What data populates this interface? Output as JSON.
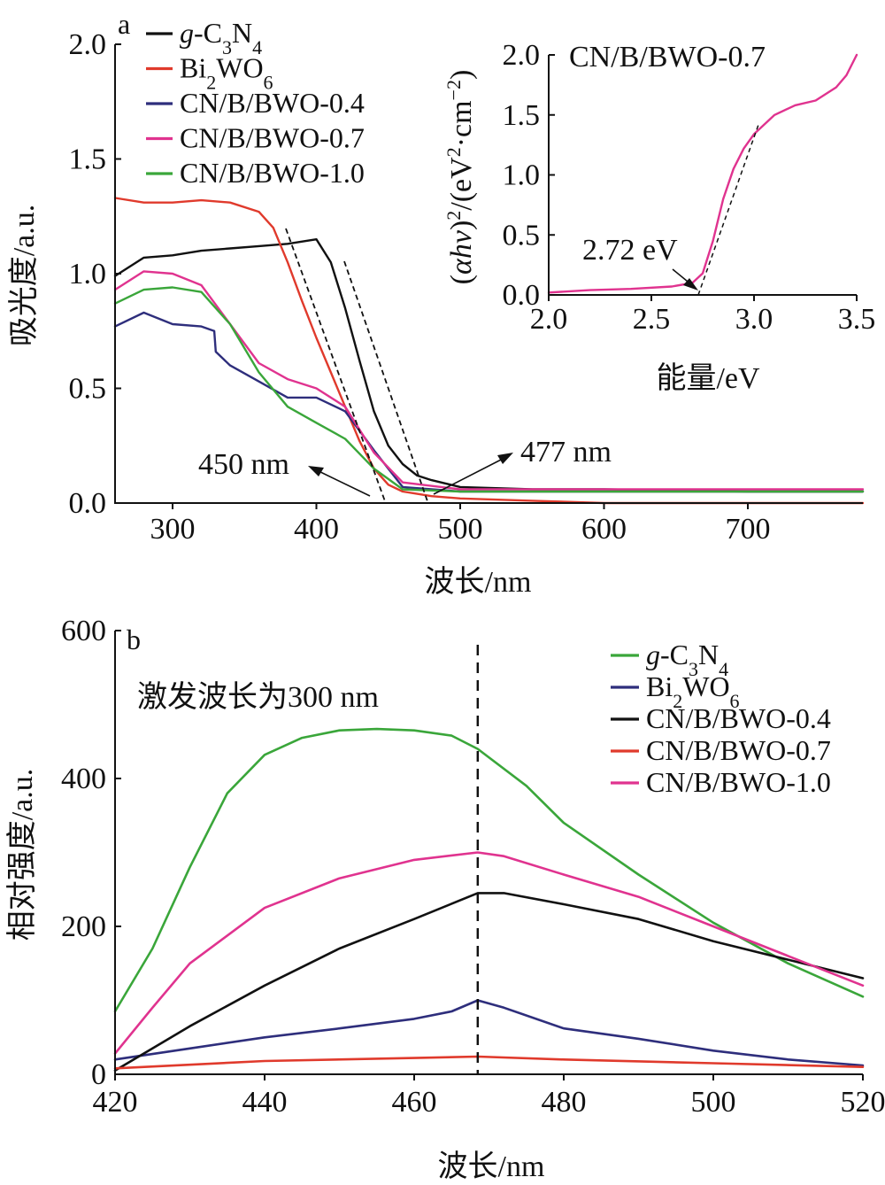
{
  "chart_data": [
    {
      "type": "line",
      "panel_label": "a",
      "xlabel": "波长/nm",
      "ylabel": "吸光度/a.u.",
      "xlim": [
        260,
        780
      ],
      "ylim": [
        0.0,
        2.0
      ],
      "xticks": [
        "300",
        "400",
        "500",
        "600",
        "700"
      ],
      "yticks": [
        "0.0",
        "0.5",
        "1.0",
        "1.5",
        "2.0"
      ],
      "legend_position": "top-left",
      "series": [
        {
          "name": "-C3N4",
          "name_prefix": "g",
          "color": "#111111",
          "x": [
            260,
            280,
            300,
            320,
            340,
            360,
            380,
            400,
            410,
            420,
            430,
            440,
            450,
            460,
            470,
            480,
            500,
            550,
            600,
            700,
            780
          ],
          "y": [
            0.99,
            1.07,
            1.08,
            1.1,
            1.11,
            1.12,
            1.13,
            1.15,
            1.05,
            0.85,
            0.62,
            0.4,
            0.25,
            0.17,
            0.12,
            0.1,
            0.07,
            0.06,
            0.06,
            0.05,
            0.05
          ]
        },
        {
          "name": "Bi2WO6",
          "color": "#e03a2c",
          "x": [
            260,
            280,
            300,
            320,
            340,
            360,
            370,
            380,
            390,
            400,
            410,
            420,
            430,
            440,
            450,
            460,
            470,
            480,
            500,
            550,
            600,
            700,
            780
          ],
          "y": [
            1.33,
            1.31,
            1.31,
            1.32,
            1.31,
            1.27,
            1.2,
            1.05,
            0.88,
            0.72,
            0.57,
            0.42,
            0.27,
            0.15,
            0.08,
            0.05,
            0.04,
            0.03,
            0.02,
            0.01,
            0.0,
            0.0,
            0.0
          ]
        },
        {
          "name": "CN/B/BWO-0.4",
          "color": "#2e2e7c",
          "x": [
            260,
            280,
            300,
            320,
            329,
            330,
            340,
            360,
            380,
            400,
            420,
            440,
            460,
            500,
            600,
            780
          ],
          "y": [
            0.77,
            0.83,
            0.78,
            0.77,
            0.75,
            0.66,
            0.6,
            0.53,
            0.46,
            0.46,
            0.4,
            0.23,
            0.07,
            0.05,
            0.05,
            0.05
          ]
        },
        {
          "name": "CN/B/BWO-0.7",
          "color": "#e0338f",
          "x": [
            260,
            280,
            300,
            320,
            340,
            360,
            380,
            400,
            420,
            440,
            460,
            500,
            600,
            780
          ],
          "y": [
            0.93,
            1.01,
            1.0,
            0.95,
            0.78,
            0.61,
            0.54,
            0.5,
            0.42,
            0.22,
            0.09,
            0.06,
            0.06,
            0.06
          ]
        },
        {
          "name": "CN/B/BWO-1.0",
          "color": "#3aa63a",
          "x": [
            260,
            280,
            300,
            320,
            340,
            360,
            380,
            400,
            420,
            440,
            460,
            500,
            600,
            780
          ],
          "y": [
            0.87,
            0.93,
            0.94,
            0.92,
            0.78,
            0.57,
            0.42,
            0.35,
            0.28,
            0.15,
            0.06,
            0.05,
            0.05,
            0.05
          ]
        }
      ],
      "annotations": [
        "450 nm",
        "477 nm"
      ],
      "inset": {
        "type": "line",
        "title": "CN/B/BWO-0.7",
        "xlabel": "能量/eV",
        "ylabel_html": "(αhν)²/(eV²·cm⁻²)",
        "xlim": [
          2.0,
          3.5
        ],
        "ylim": [
          0.0,
          2.0
        ],
        "xticks": [
          "2.0",
          "2.5",
          "3.0",
          "3.5"
        ],
        "yticks": [
          "0.0",
          "0.5",
          "1.0",
          "1.5",
          "2.0"
        ],
        "annotation": "2.72 eV",
        "series": [
          {
            "name": "CN/B/BWO-0.7",
            "color": "#e0338f",
            "x": [
              2.0,
              2.2,
              2.4,
              2.6,
              2.7,
              2.75,
              2.8,
              2.85,
              2.9,
              2.95,
              3.0,
              3.1,
              3.2,
              3.3,
              3.4,
              3.45,
              3.5
            ],
            "y": [
              0.02,
              0.04,
              0.05,
              0.07,
              0.1,
              0.18,
              0.45,
              0.8,
              1.05,
              1.22,
              1.34,
              1.5,
              1.58,
              1.62,
              1.73,
              1.83,
              2.0
            ]
          }
        ]
      }
    },
    {
      "type": "line",
      "panel_label": "b",
      "xlabel": "波长/nm",
      "ylabel": "相对强度/a.u.",
      "xlim": [
        420,
        520
      ],
      "ylim": [
        0,
        600
      ],
      "xticks": [
        "420",
        "440",
        "460",
        "480",
        "500",
        "520"
      ],
      "yticks": [
        "0",
        "200",
        "400",
        "600"
      ],
      "legend_position": "top-right",
      "annotation": "激发波长为300 nm",
      "vline_x": 468.5,
      "series": [
        {
          "name": "-C3N4",
          "name_prefix": "g",
          "color": "#3aa63a",
          "x": [
            420,
            425,
            430,
            435,
            440,
            445,
            450,
            455,
            460,
            465,
            468.5,
            475,
            480,
            490,
            500,
            510,
            520
          ],
          "y": [
            85,
            170,
            280,
            380,
            432,
            455,
            465,
            467,
            465,
            458,
            440,
            390,
            340,
            270,
            205,
            150,
            105
          ]
        },
        {
          "name": "Bi2WO6",
          "color": "#2e2e7c",
          "x": [
            420,
            430,
            440,
            450,
            460,
            465,
            468.5,
            472,
            480,
            490,
            500,
            510,
            520
          ],
          "y": [
            20,
            35,
            50,
            62,
            75,
            85,
            100,
            90,
            62,
            48,
            32,
            20,
            12
          ]
        },
        {
          "name": "CN/B/BWO-0.4",
          "color": "#111111",
          "x": [
            420,
            425,
            430,
            440,
            450,
            460,
            468.5,
            472,
            480,
            490,
            500,
            510,
            520
          ],
          "y": [
            5,
            35,
            65,
            120,
            170,
            210,
            245,
            245,
            230,
            210,
            180,
            155,
            130
          ]
        },
        {
          "name": "CN/B/BWO-0.7",
          "color": "#e03a2c",
          "x": [
            420,
            440,
            460,
            468.5,
            480,
            500,
            520
          ],
          "y": [
            8,
            18,
            22,
            24,
            20,
            15,
            10
          ]
        },
        {
          "name": "CN/B/BWO-1.0",
          "color": "#e0338f",
          "x": [
            420,
            425,
            430,
            440,
            450,
            460,
            468.5,
            472,
            480,
            490,
            500,
            510,
            520
          ],
          "y": [
            28,
            90,
            150,
            225,
            265,
            290,
            300,
            295,
            270,
            240,
            200,
            160,
            120
          ]
        }
      ]
    }
  ]
}
